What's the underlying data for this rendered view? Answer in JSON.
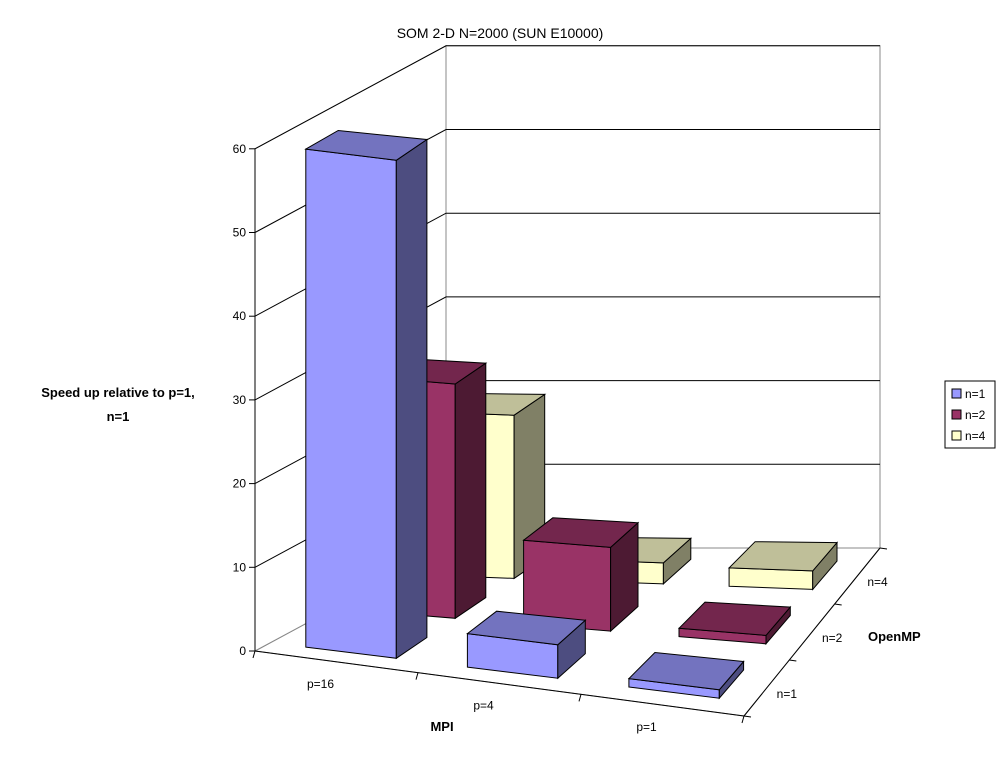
{
  "chart_data": {
    "type": "bar",
    "variant": "3d-column",
    "title": "SOM 2-D N=2000 (SUN E10000)",
    "zlabel_lines": [
      "Speed up relative to p=1,",
      "n=1"
    ],
    "xlabel": "MPI",
    "ylabel": "OpenMP",
    "zlim": [
      0,
      60
    ],
    "zticks": [
      0,
      10,
      20,
      30,
      40,
      50,
      60
    ],
    "categories": [
      "p=16",
      "p=4",
      "p=1"
    ],
    "series": [
      {
        "name": "n=1",
        "values": [
          59.5,
          4,
          1
        ]
      },
      {
        "name": "n=2",
        "values": [
          28,
          10,
          1
        ]
      },
      {
        "name": "n=4",
        "values": [
          19.5,
          2.5,
          2.2
        ]
      }
    ],
    "legend_position": "right",
    "grid": true
  },
  "colors": {
    "n1": "#9999ff",
    "n2": "#993366",
    "n4": "#ffffcc"
  }
}
